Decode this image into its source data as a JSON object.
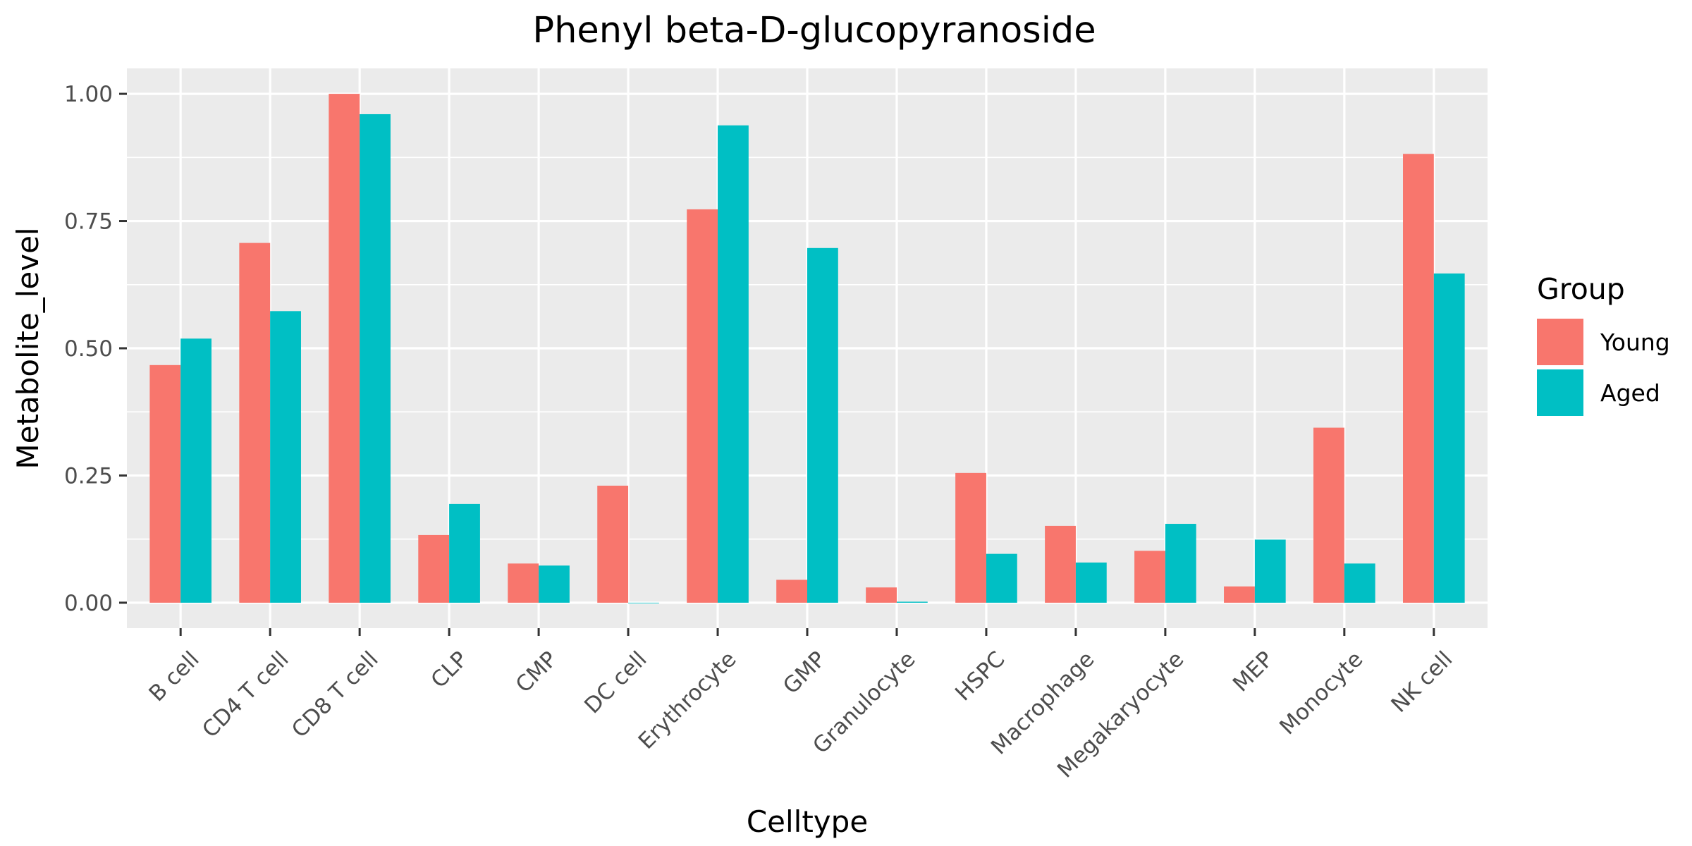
{
  "chart_data": {
    "type": "bar",
    "title": "Phenyl beta-D-glucopyranoside",
    "xlabel": "Celltype",
    "ylabel": "Metabolite_level",
    "ylim": [
      -0.05,
      1.05
    ],
    "yticks": [
      0,
      0.25,
      0.5,
      0.75,
      1.0
    ],
    "ytick_labels": [
      "0.00",
      "0.25",
      "0.50",
      "0.75",
      "1.00"
    ],
    "grid": true,
    "legend": {
      "title": "Group",
      "position": "right"
    },
    "categories": [
      "B cell",
      "CD4 T cell",
      "CD8 T cell",
      "CLP",
      "CMP",
      "DC cell",
      "Erythrocyte",
      "GMP",
      "Granulocyte",
      "HSPC",
      "Macrophage",
      "Megakaryocyte",
      "MEP",
      "Monocyte",
      "NK cell"
    ],
    "series": [
      {
        "name": "Young",
        "color": "#f8766d",
        "values": [
          0.467,
          0.707,
          1.0,
          0.133,
          0.077,
          0.23,
          0.773,
          0.045,
          0.03,
          0.255,
          0.151,
          0.102,
          0.032,
          0.344,
          0.882
        ]
      },
      {
        "name": "Aged",
        "color": "#00bfc4",
        "values": [
          0.519,
          0.573,
          0.96,
          0.194,
          0.073,
          0.0,
          0.938,
          0.697,
          0.002,
          0.096,
          0.079,
          0.155,
          0.124,
          0.077,
          0.647
        ]
      }
    ]
  },
  "colors": {
    "panel_bg": "#ebebeb",
    "grid": "#ffffff",
    "tick": "#333333"
  }
}
